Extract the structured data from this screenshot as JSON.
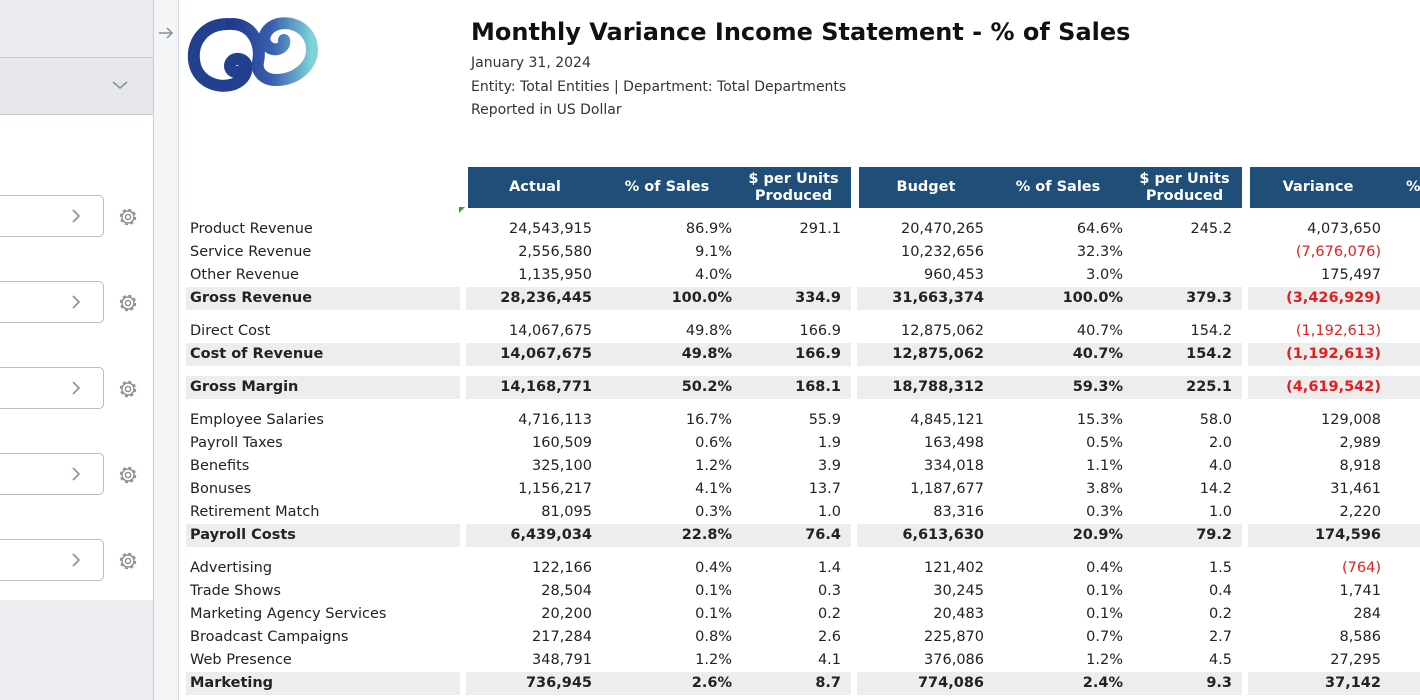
{
  "report": {
    "title": "Monthly Variance Income Statement - % of Sales",
    "date": "January 31, 2024",
    "entity_line": "Entity: Total Entities | Department: Total Departments",
    "currency_line": "Reported in US Dollar"
  },
  "icons": {
    "panel_arrow": "arrow-right-icon",
    "dropdown": "chevron-down-icon",
    "param_chevron": "chevron-right-icon",
    "settings": "gear-icon"
  },
  "colors": {
    "header": "#1f4e79",
    "negative": "#e02020",
    "total_band": "#ededed"
  },
  "headers": [
    "Actual",
    "% of Sales",
    "$ per Units Produced",
    "Budget",
    "% of Sales",
    "$ per Units Produced",
    "Variance",
    "%"
  ],
  "rows": [
    {
      "label": "Product Revenue",
      "actual": "24,543,915",
      "actual_pct": "86.9%",
      "actual_unit": "291.1",
      "budget": "20,470,265",
      "budget_pct": "64.6%",
      "budget_unit": "245.2",
      "variance": "4,073,650",
      "neg": false,
      "total": false
    },
    {
      "label": "Service Revenue",
      "actual": "2,556,580",
      "actual_pct": "9.1%",
      "actual_unit": "",
      "budget": "10,232,656",
      "budget_pct": "32.3%",
      "budget_unit": "",
      "variance": "(7,676,076)",
      "neg": true,
      "total": false
    },
    {
      "label": "Other Revenue",
      "actual": "1,135,950",
      "actual_pct": "4.0%",
      "actual_unit": "",
      "budget": "960,453",
      "budget_pct": "3.0%",
      "budget_unit": "",
      "variance": "175,497",
      "neg": false,
      "total": false
    },
    {
      "label": "Gross Revenue",
      "actual": "28,236,445",
      "actual_pct": "100.0%",
      "actual_unit": "334.9",
      "budget": "31,663,374",
      "budget_pct": "100.0%",
      "budget_unit": "379.3",
      "variance": "(3,426,929)",
      "neg": true,
      "total": true
    },
    {
      "label": "Direct Cost",
      "actual": "14,067,675",
      "actual_pct": "49.8%",
      "actual_unit": "166.9",
      "budget": "12,875,062",
      "budget_pct": "40.7%",
      "budget_unit": "154.2",
      "variance": "(1,192,613)",
      "neg": true,
      "total": false
    },
    {
      "label": "Cost of Revenue",
      "actual": "14,067,675",
      "actual_pct": "49.8%",
      "actual_unit": "166.9",
      "budget": "12,875,062",
      "budget_pct": "40.7%",
      "budget_unit": "154.2",
      "variance": "(1,192,613)",
      "neg": true,
      "total": true
    },
    {
      "label": "Gross Margin",
      "actual": "14,168,771",
      "actual_pct": "50.2%",
      "actual_unit": "168.1",
      "budget": "18,788,312",
      "budget_pct": "59.3%",
      "budget_unit": "225.1",
      "variance": "(4,619,542)",
      "neg": true,
      "total": true
    },
    {
      "label": "Employee Salaries",
      "actual": "4,716,113",
      "actual_pct": "16.7%",
      "actual_unit": "55.9",
      "budget": "4,845,121",
      "budget_pct": "15.3%",
      "budget_unit": "58.0",
      "variance": "129,008",
      "neg": false,
      "total": false
    },
    {
      "label": "Payroll Taxes",
      "actual": "160,509",
      "actual_pct": "0.6%",
      "actual_unit": "1.9",
      "budget": "163,498",
      "budget_pct": "0.5%",
      "budget_unit": "2.0",
      "variance": "2,989",
      "neg": false,
      "total": false
    },
    {
      "label": "Benefits",
      "actual": "325,100",
      "actual_pct": "1.2%",
      "actual_unit": "3.9",
      "budget": "334,018",
      "budget_pct": "1.1%",
      "budget_unit": "4.0",
      "variance": "8,918",
      "neg": false,
      "total": false
    },
    {
      "label": "Bonuses",
      "actual": "1,156,217",
      "actual_pct": "4.1%",
      "actual_unit": "13.7",
      "budget": "1,187,677",
      "budget_pct": "3.8%",
      "budget_unit": "14.2",
      "variance": "31,461",
      "neg": false,
      "total": false
    },
    {
      "label": "Retirement Match",
      "actual": "81,095",
      "actual_pct": "0.3%",
      "actual_unit": "1.0",
      "budget": "83,316",
      "budget_pct": "0.3%",
      "budget_unit": "1.0",
      "variance": "2,220",
      "neg": false,
      "total": false
    },
    {
      "label": "Payroll Costs",
      "actual": "6,439,034",
      "actual_pct": "22.8%",
      "actual_unit": "76.4",
      "budget": "6,613,630",
      "budget_pct": "20.9%",
      "budget_unit": "79.2",
      "variance": "174,596",
      "neg": false,
      "total": true
    },
    {
      "label": "Advertising",
      "actual": "122,166",
      "actual_pct": "0.4%",
      "actual_unit": "1.4",
      "budget": "121,402",
      "budget_pct": "0.4%",
      "budget_unit": "1.5",
      "variance": "(764)",
      "neg": true,
      "total": false
    },
    {
      "label": "Trade Shows",
      "actual": "28,504",
      "actual_pct": "0.1%",
      "actual_unit": "0.3",
      "budget": "30,245",
      "budget_pct": "0.1%",
      "budget_unit": "0.4",
      "variance": "1,741",
      "neg": false,
      "total": false
    },
    {
      "label": "Marketing Agency Services",
      "actual": "20,200",
      "actual_pct": "0.1%",
      "actual_unit": "0.2",
      "budget": "20,483",
      "budget_pct": "0.1%",
      "budget_unit": "0.2",
      "variance": "284",
      "neg": false,
      "total": false
    },
    {
      "label": "Broadcast Campaigns",
      "actual": "217,284",
      "actual_pct": "0.8%",
      "actual_unit": "2.6",
      "budget": "225,870",
      "budget_pct": "0.7%",
      "budget_unit": "2.7",
      "variance": "8,586",
      "neg": false,
      "total": false
    },
    {
      "label": "Web Presence",
      "actual": "348,791",
      "actual_pct": "1.2%",
      "actual_unit": "4.1",
      "budget": "376,086",
      "budget_pct": "1.2%",
      "budget_unit": "4.5",
      "variance": "27,295",
      "neg": false,
      "total": false
    },
    {
      "label": "Marketing",
      "actual": "736,945",
      "actual_pct": "2.6%",
      "actual_unit": "8.7",
      "budget": "774,086",
      "budget_pct": "2.4%",
      "budget_unit": "9.3",
      "variance": "37,142",
      "neg": false,
      "total": true
    }
  ]
}
